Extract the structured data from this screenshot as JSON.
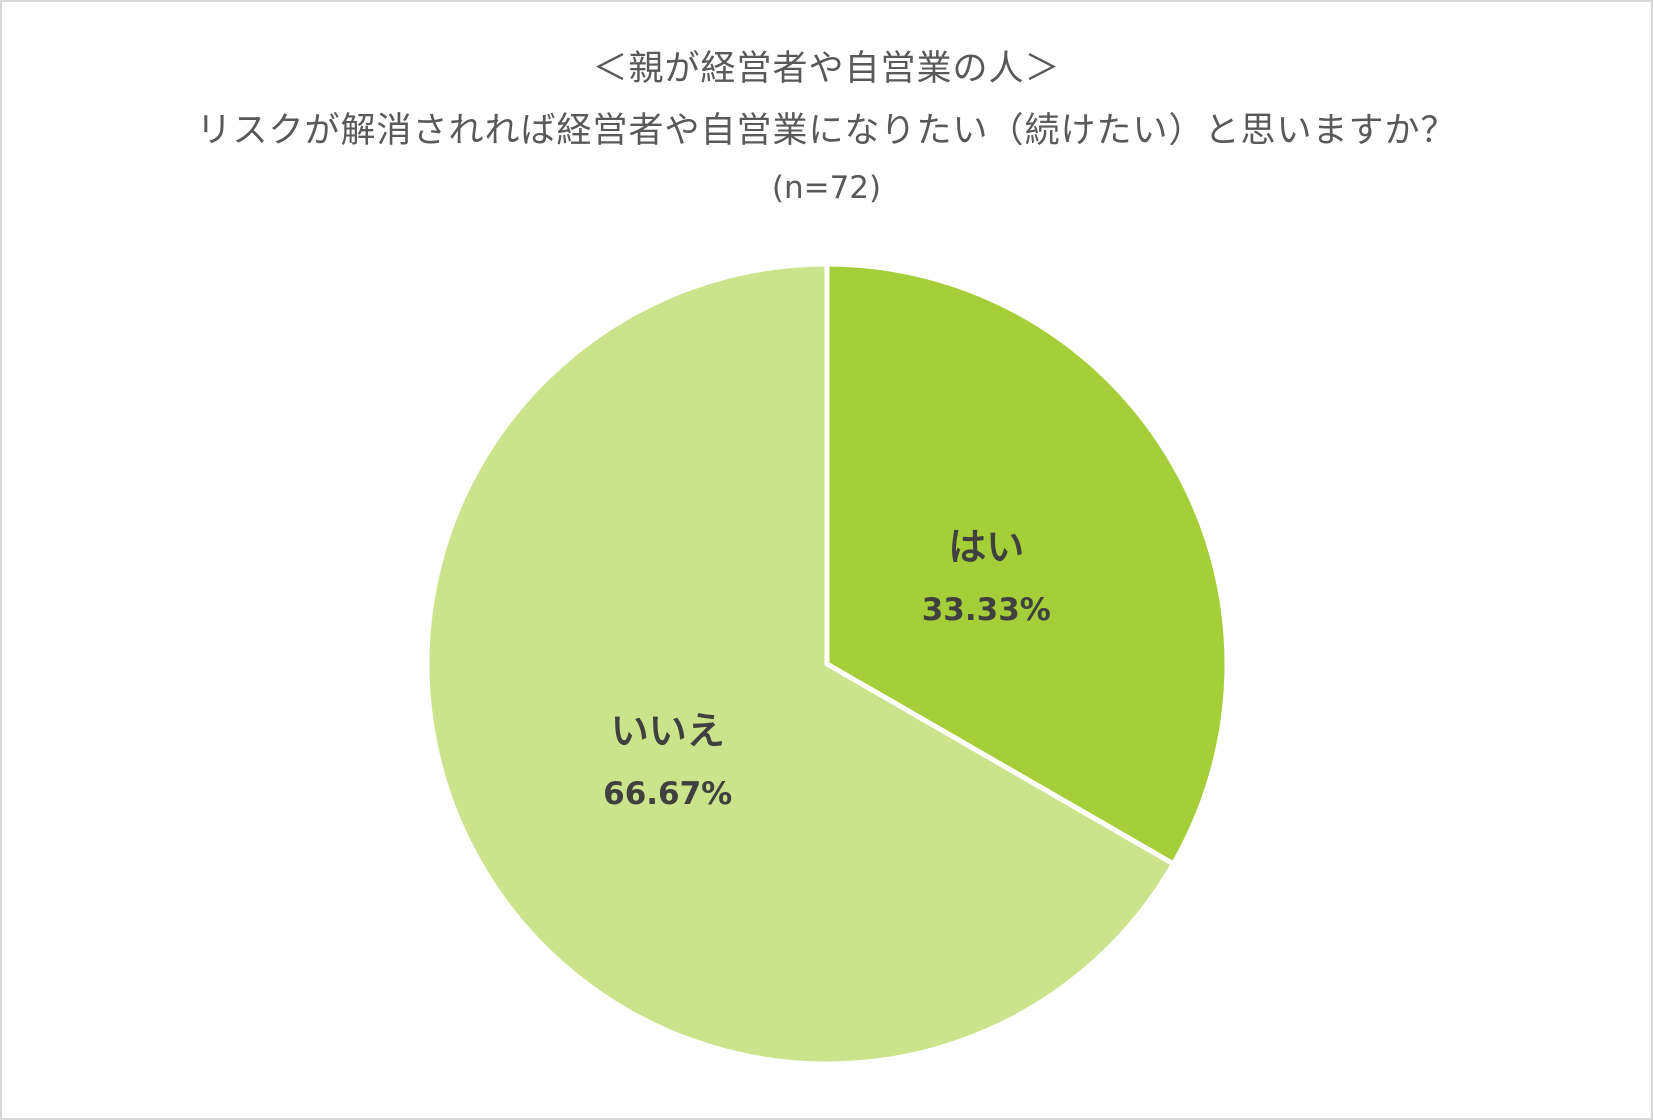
{
  "chart_data": {
    "type": "pie",
    "title_line1": "＜親が経営者や自営業の人＞",
    "title_line2": "リスクが解消されれば経営者や自営業になりたい（続けたい）と思いますか？",
    "subtitle": "(n=72)",
    "slices": [
      {
        "label": "はい",
        "value": 33.33,
        "value_label": "33.33%",
        "color": "#a6ce39"
      },
      {
        "label": "いいえ",
        "value": 66.67,
        "value_label": "66.67%",
        "color": "#cbe38a"
      }
    ],
    "start_angle": "12 o'clock",
    "direction": "clockwise",
    "legend": "none"
  }
}
